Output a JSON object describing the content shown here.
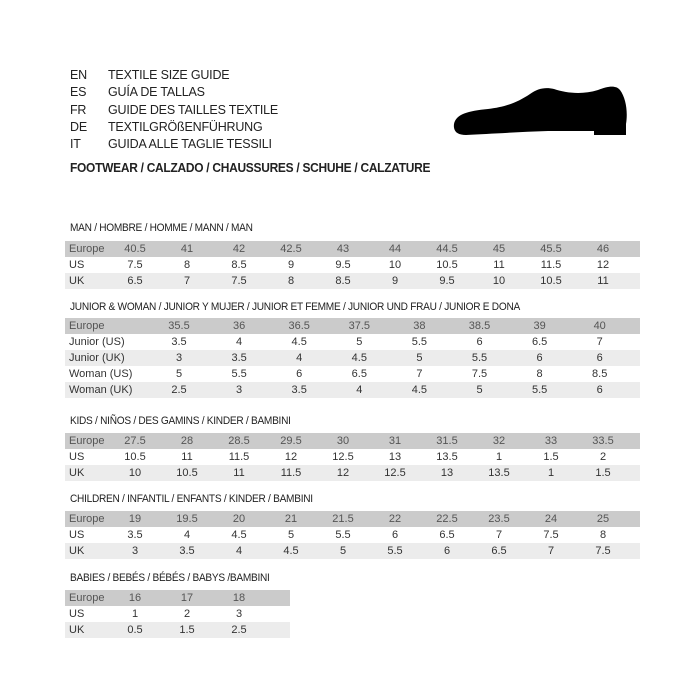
{
  "header": {
    "lines": [
      {
        "code": "EN",
        "text": "TEXTILE SIZE GUIDE"
      },
      {
        "code": "ES",
        "text": "GUÍA DE TALLAS"
      },
      {
        "code": "FR",
        "text": "GUIDE DES TAILLES TEXTILE"
      },
      {
        "code": "DE",
        "text": "TEXTILGRÖßENFÜHRUNG"
      },
      {
        "code": "IT",
        "text": "GUIDA ALLE TAGLIE TESSILI"
      }
    ],
    "footwear_title": "FOOTWEAR / CALZADO / CHAUSSURES / SCHUHE / CALZATURE",
    "icon": "shoe-icon"
  },
  "colors": {
    "header_row": "#cbcbcb",
    "alt_row": "#ececec"
  },
  "sections": [
    {
      "title": "MAN / HOMBRE / HOMME / MANN / MAN",
      "rows": [
        {
          "label": "Europe",
          "values": [
            "40.5",
            "41",
            "42",
            "42.5",
            "43",
            "44",
            "44.5",
            "45",
            "45.5",
            "46"
          ]
        },
        {
          "label": "US",
          "values": [
            "7.5",
            "8",
            "8.5",
            "9",
            "9.5",
            "10",
            "10.5",
            "11",
            "11.5",
            "12"
          ]
        },
        {
          "label": "UK",
          "values": [
            "6.5",
            "7",
            "7.5",
            "8",
            "8.5",
            "9",
            "9.5",
            "10",
            "10.5",
            "11"
          ]
        }
      ]
    },
    {
      "title": "JUNIOR & WOMAN / JUNIOR Y MUJER / JUNIOR ET FEMME / JUNIOR UND FRAU / JUNIOR E DONA",
      "rows": [
        {
          "label": "Europe",
          "values": [
            "35.5",
            "36",
            "36.5",
            "37.5",
            "38",
            "38.5",
            "39",
            "40"
          ]
        },
        {
          "label": "Junior (US)",
          "values": [
            "3.5",
            "4",
            "4.5",
            "5",
            "5.5",
            "6",
            "6.5",
            "7"
          ]
        },
        {
          "label": "Junior (UK)",
          "values": [
            "3",
            "3.5",
            "4",
            "4.5",
            "5",
            "5.5",
            "6",
            "6"
          ]
        },
        {
          "label": "Woman (US)",
          "values": [
            "5",
            "5.5",
            "6",
            "6.5",
            "7",
            "7.5",
            "8",
            "8.5"
          ]
        },
        {
          "label": "Woman (UK)",
          "values": [
            "2.5",
            "3",
            "3.5",
            "4",
            "4.5",
            "5",
            "5.5",
            "6"
          ]
        }
      ]
    },
    {
      "title": "KIDS / NIÑOS / DES GAMINS / KINDER / BAMBINI",
      "rows": [
        {
          "label": "Europe",
          "values": [
            "27.5",
            "28",
            "28.5",
            "29.5",
            "30",
            "31",
            "31.5",
            "32",
            "33",
            "33.5"
          ]
        },
        {
          "label": "US",
          "values": [
            "10.5",
            "11",
            "11.5",
            "12",
            "12.5",
            "13",
            "13.5",
            "1",
            "1.5",
            "2"
          ]
        },
        {
          "label": "UK",
          "values": [
            "10",
            "10.5",
            "11",
            "11.5",
            "12",
            "12.5",
            "13",
            "13.5",
            "1",
            "1.5"
          ]
        }
      ]
    },
    {
      "title": "CHILDREN / INFANTIL / ENFANTS / KINDER / BAMBINI",
      "rows": [
        {
          "label": "Europe",
          "values": [
            "19",
            "19.5",
            "20",
            "21",
            "21.5",
            "22",
            "22.5",
            "23.5",
            "24",
            "25"
          ]
        },
        {
          "label": "US",
          "values": [
            "3.5",
            "4",
            "4.5",
            "5",
            "5.5",
            "6",
            "6.5",
            "7",
            "7.5",
            "8"
          ]
        },
        {
          "label": "UK",
          "values": [
            "3",
            "3.5",
            "4",
            "4.5",
            "5",
            "5.5",
            "6",
            "6.5",
            "7",
            "7.5"
          ]
        }
      ]
    },
    {
      "title": "BABIES  / BEBÉS / BÉBÉS / BABYS /BAMBINI",
      "rows": [
        {
          "label": "Europe",
          "values": [
            "16",
            "17",
            "18"
          ]
        },
        {
          "label": "US",
          "values": [
            "1",
            "2",
            "3"
          ]
        },
        {
          "label": "UK",
          "values": [
            "0.5",
            "1.5",
            "2.5"
          ]
        }
      ]
    }
  ]
}
